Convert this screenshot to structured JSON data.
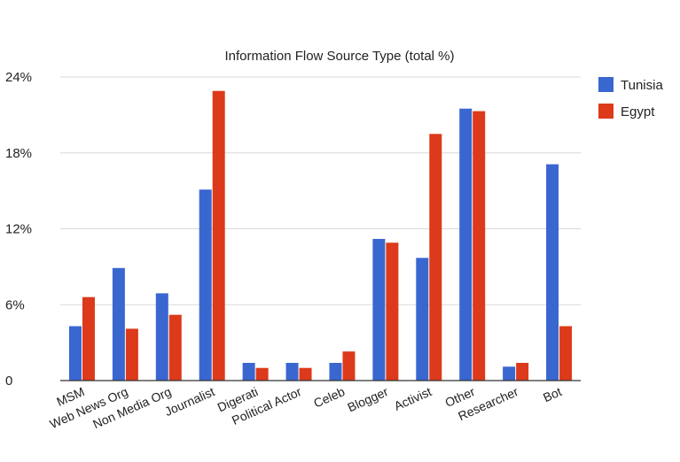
{
  "chart_data": {
    "type": "bar",
    "title": "Information Flow Source Type (total %)",
    "xlabel": "",
    "ylabel": "",
    "categories": [
      "MSM",
      "Web News Org",
      "Non Media Org",
      "Journalist",
      "Digerati",
      "Political Actor",
      "Celeb",
      "Blogger",
      "Activist",
      "Other",
      "Researcher",
      "Bot"
    ],
    "series": [
      {
        "name": "Tunisia",
        "color": "#3a66d0",
        "values": [
          4.3,
          8.9,
          6.9,
          15.1,
          1.4,
          1.4,
          1.4,
          11.2,
          9.7,
          21.5,
          1.1,
          17.1
        ]
      },
      {
        "name": "Egypt",
        "color": "#dc3a1a",
        "values": [
          6.6,
          4.1,
          5.2,
          22.9,
          1.0,
          1.0,
          2.3,
          10.9,
          19.5,
          21.3,
          1.4,
          4.3
        ]
      }
    ],
    "ylim": [
      0,
      24
    ],
    "yticks": [
      "0",
      "6%",
      "12%",
      "18%",
      "24%"
    ],
    "ytick_values": [
      0,
      6,
      12,
      18,
      24
    ],
    "grid": true,
    "legend_position": "top-right"
  }
}
